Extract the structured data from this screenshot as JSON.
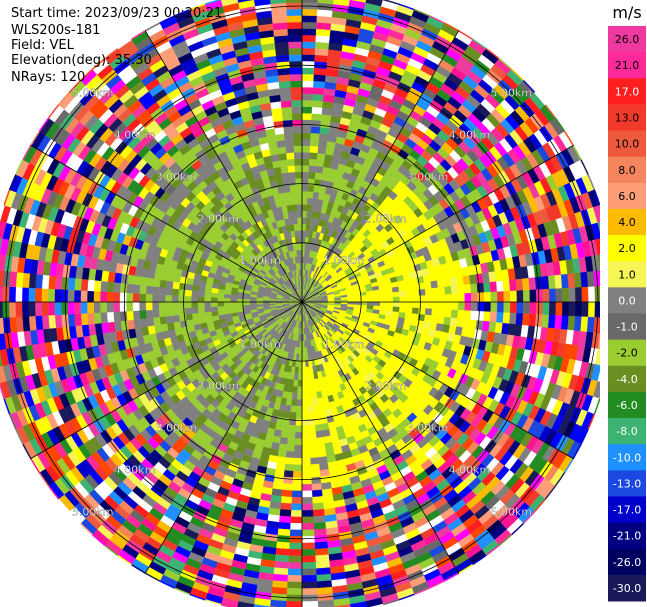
{
  "header": {
    "start_time": "Start time: 2023/09/23 00:20:21",
    "instrument": "WLS200s-181",
    "field": "Field: VEL",
    "elevation": "Elevation(deg): 35.30",
    "nrays": "NRays: 120"
  },
  "chart_data": {
    "type": "heatmap",
    "projection": "polar-ppi",
    "title": "",
    "field": "VEL",
    "n_rays": 120,
    "elevation_deg": 35.3,
    "range_rings_km": [
      1.0,
      2.0,
      3.0,
      4.0,
      5.0
    ],
    "range_ring_labels": [
      "1.00km",
      "2.00km",
      "3.00km",
      "4.00km",
      "5.00km"
    ],
    "max_range_km": 5.3,
    "spoke_angles_deg": [
      0,
      30,
      60,
      90,
      120,
      150
    ],
    "colorbar": {
      "unit": "m/s",
      "tick_labels": [
        "26.0",
        "21.0",
        "17.0",
        "13.0",
        "10.0",
        "8.0",
        "6.0",
        "4.0",
        "2.0",
        "1.0",
        "0.0",
        "-1.0",
        "-2.0",
        "-4.0",
        "-6.0",
        "-8.0",
        "-10.0",
        "-13.0",
        "-17.0",
        "-21.0",
        "-26.0",
        "-30.0"
      ],
      "colors_top_to_bottom": [
        "#ee3aa0",
        "#ff2a9a",
        "#ff1f1f",
        "#f23a2a",
        "#f05a3c",
        "#f4855c",
        "#fe9e78",
        "#fdbb00",
        "#ffff00",
        "#f5f555",
        "#808080",
        "#696969",
        "#9acd32",
        "#6b8e23",
        "#228b22",
        "#3cb371",
        "#1e90ff",
        "#1a48e0",
        "#0000cd",
        "#000080",
        "#000060",
        "#1a1a5a"
      ]
    },
    "data_description_zones": [
      {
        "range_km": [
          0.0,
          1.0
        ],
        "dominant": [
          "#808080",
          "#9acd32"
        ]
      },
      {
        "range_km": [
          1.0,
          2.6
        ],
        "dominant": [
          "#9acd32",
          "#6b8e23",
          "#808080",
          "#ffff00"
        ]
      },
      {
        "range_km": [
          2.6,
          3.6
        ],
        "dominant": [
          "#808080",
          "#9acd32",
          "#ffff00",
          "noise"
        ]
      },
      {
        "range_km": [
          3.6,
          5.3
        ],
        "dominant": [
          "noise"
        ]
      }
    ]
  }
}
